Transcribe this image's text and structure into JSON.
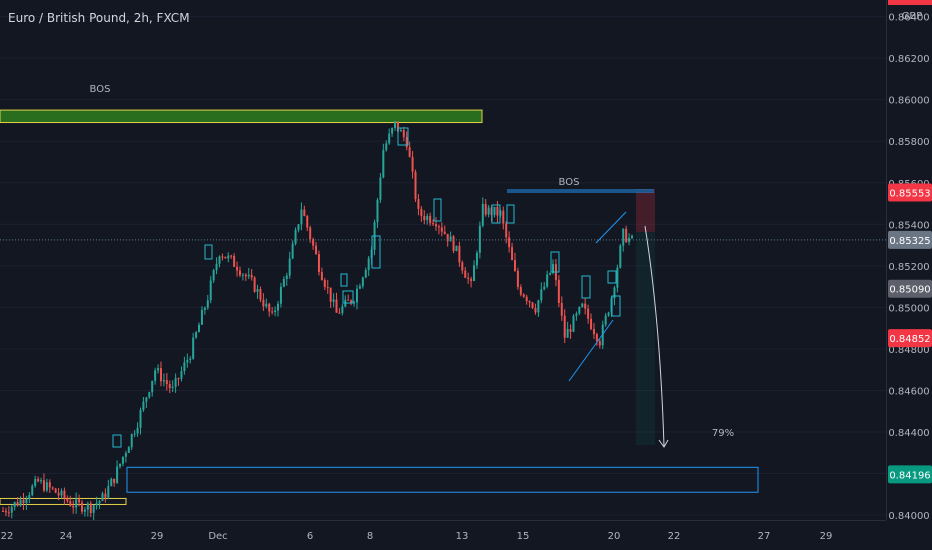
{
  "header": {
    "symbol_title": "Euro / British Pound, 2h, FXCM",
    "currency": "GBP"
  },
  "colors": {
    "background": "#131722",
    "up_candle": "#26a69a",
    "down_candle": "#ef5350",
    "zone_green_border": "#e5d24a",
    "zone_green_fill": "#2e7d1e",
    "zone_blue": "#2196f3",
    "price_badge_red": "#f23645",
    "price_badge_green": "#089981",
    "price_badge_gray": "#5d606b",
    "price_badge_current": "#6b7685",
    "axis_text": "#b2b5be"
  },
  "chart_data": {
    "type": "candlestick",
    "x_ticks": [
      "22",
      "24",
      "29",
      "Dec",
      "6",
      "8",
      "13",
      "15",
      "20",
      "22",
      "27",
      "29"
    ],
    "y_ticks": [
      "0.84000",
      "0.84200",
      "0.84400",
      "0.84600",
      "0.84800",
      "0.85000",
      "0.85200",
      "0.85400",
      "0.85600",
      "0.85800",
      "0.86000",
      "0.86200",
      "0.86400"
    ],
    "ylim": [
      0.8388,
      0.8648
    ],
    "price_labels": [
      {
        "value": "0.85553",
        "kind": "red"
      },
      {
        "value": "0.85325",
        "kind": "current"
      },
      {
        "value": "0.85090",
        "kind": "gray"
      },
      {
        "value": "0.84852",
        "kind": "red"
      },
      {
        "value": "0.84196",
        "kind": "green"
      }
    ],
    "annotations": [
      {
        "text": "BOS",
        "near": "upper-left zone"
      },
      {
        "text": "BOS",
        "near": "middle blue line"
      },
      {
        "text": "79%",
        "near": "target zone"
      }
    ],
    "zones": [
      {
        "name": "supply-zone",
        "y_top": 0.8595,
        "y_bottom": 0.8589
      },
      {
        "name": "demand-zone-left",
        "y_top": 0.8408,
        "y_bottom": 0.8404
      },
      {
        "name": "target-zone",
        "y_top": 0.8423,
        "y_bottom": 0.8411
      }
    ],
    "lines": [
      {
        "name": "bos-line",
        "y": 0.8554
      },
      {
        "name": "current-price-line",
        "y": 0.85325
      }
    ],
    "trend_path": [
      {
        "t": 0,
        "p": 0.8402
      },
      {
        "t": 6,
        "p": 0.8407
      },
      {
        "t": 12,
        "p": 0.8416
      },
      {
        "t": 18,
        "p": 0.8411
      },
      {
        "t": 24,
        "p": 0.8405
      },
      {
        "t": 30,
        "p": 0.8404
      },
      {
        "t": 34,
        "p": 0.8408
      },
      {
        "t": 38,
        "p": 0.8418
      },
      {
        "t": 46,
        "p": 0.8445
      },
      {
        "t": 52,
        "p": 0.847
      },
      {
        "t": 58,
        "p": 0.846
      },
      {
        "t": 64,
        "p": 0.8478
      },
      {
        "t": 70,
        "p": 0.8505
      },
      {
        "t": 74,
        "p": 0.8527
      },
      {
        "t": 80,
        "p": 0.852
      },
      {
        "t": 86,
        "p": 0.851
      },
      {
        "t": 92,
        "p": 0.8495
      },
      {
        "t": 98,
        "p": 0.8522
      },
      {
        "t": 102,
        "p": 0.8548
      },
      {
        "t": 108,
        "p": 0.852
      },
      {
        "t": 114,
        "p": 0.8497
      },
      {
        "t": 120,
        "p": 0.8505
      },
      {
        "t": 126,
        "p": 0.8528
      },
      {
        "t": 130,
        "p": 0.8576
      },
      {
        "t": 134,
        "p": 0.8588
      },
      {
        "t": 138,
        "p": 0.858
      },
      {
        "t": 142,
        "p": 0.8545
      },
      {
        "t": 148,
        "p": 0.8542
      },
      {
        "t": 154,
        "p": 0.853
      },
      {
        "t": 160,
        "p": 0.851
      },
      {
        "t": 164,
        "p": 0.8547
      },
      {
        "t": 170,
        "p": 0.8545
      },
      {
        "t": 176,
        "p": 0.851
      },
      {
        "t": 182,
        "p": 0.85
      },
      {
        "t": 188,
        "p": 0.852
      },
      {
        "t": 192,
        "p": 0.8486
      },
      {
        "t": 198,
        "p": 0.85
      },
      {
        "t": 204,
        "p": 0.8484
      },
      {
        "t": 208,
        "p": 0.8505
      },
      {
        "t": 212,
        "p": 0.8535
      },
      {
        "t": 215,
        "p": 0.8532
      }
    ]
  }
}
